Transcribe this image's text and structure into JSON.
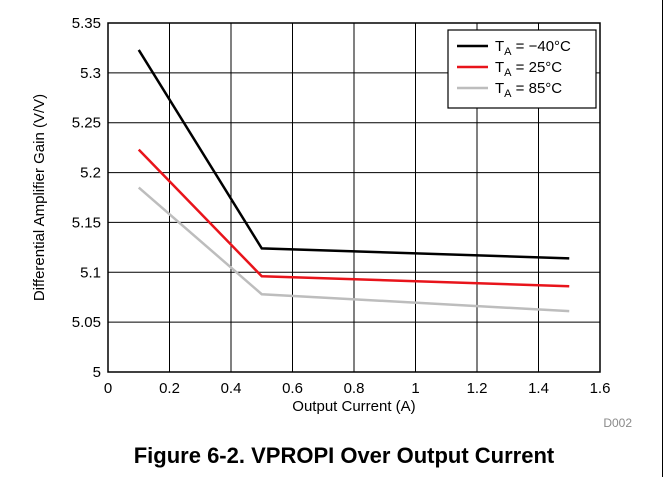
{
  "chart_data": {
    "type": "line",
    "xlabel": "Output Current (A)",
    "ylabel": "Differential Amplifier Gain (V/V)",
    "xlim": [
      0,
      1.6
    ],
    "ylim": [
      5,
      5.35
    ],
    "xticks": [
      0,
      0.2,
      0.4,
      0.6,
      0.8,
      1,
      1.2,
      1.4,
      1.6
    ],
    "yticks": [
      5,
      5.05,
      5.1,
      5.15,
      5.2,
      5.25,
      5.3,
      5.35
    ],
    "grid": true,
    "legend_position": "top-right",
    "series": [
      {
        "name": "T_A = −40°C",
        "name_main": "T",
        "name_sub": "A",
        "name_rest": " = −40°C",
        "color": "#000000",
        "x": [
          0.1,
          0.5,
          1.5
        ],
        "y": [
          5.323,
          5.124,
          5.114
        ]
      },
      {
        "name": "T_A = 25°C",
        "name_main": "T",
        "name_sub": "A",
        "name_rest": " = 25°C",
        "color": "#e8141b",
        "x": [
          0.1,
          0.5,
          1.5
        ],
        "y": [
          5.223,
          5.096,
          5.086
        ]
      },
      {
        "name": "T_A = 85°C",
        "name_main": "T",
        "name_sub": "A",
        "name_rest": " = 85°C",
        "color": "#bdbdbd",
        "x": [
          0.1,
          0.5,
          1.5
        ],
        "y": [
          5.185,
          5.078,
          5.061
        ]
      }
    ],
    "code": "D002"
  },
  "caption": "Figure 6-2. VPROPI Over Output Current"
}
